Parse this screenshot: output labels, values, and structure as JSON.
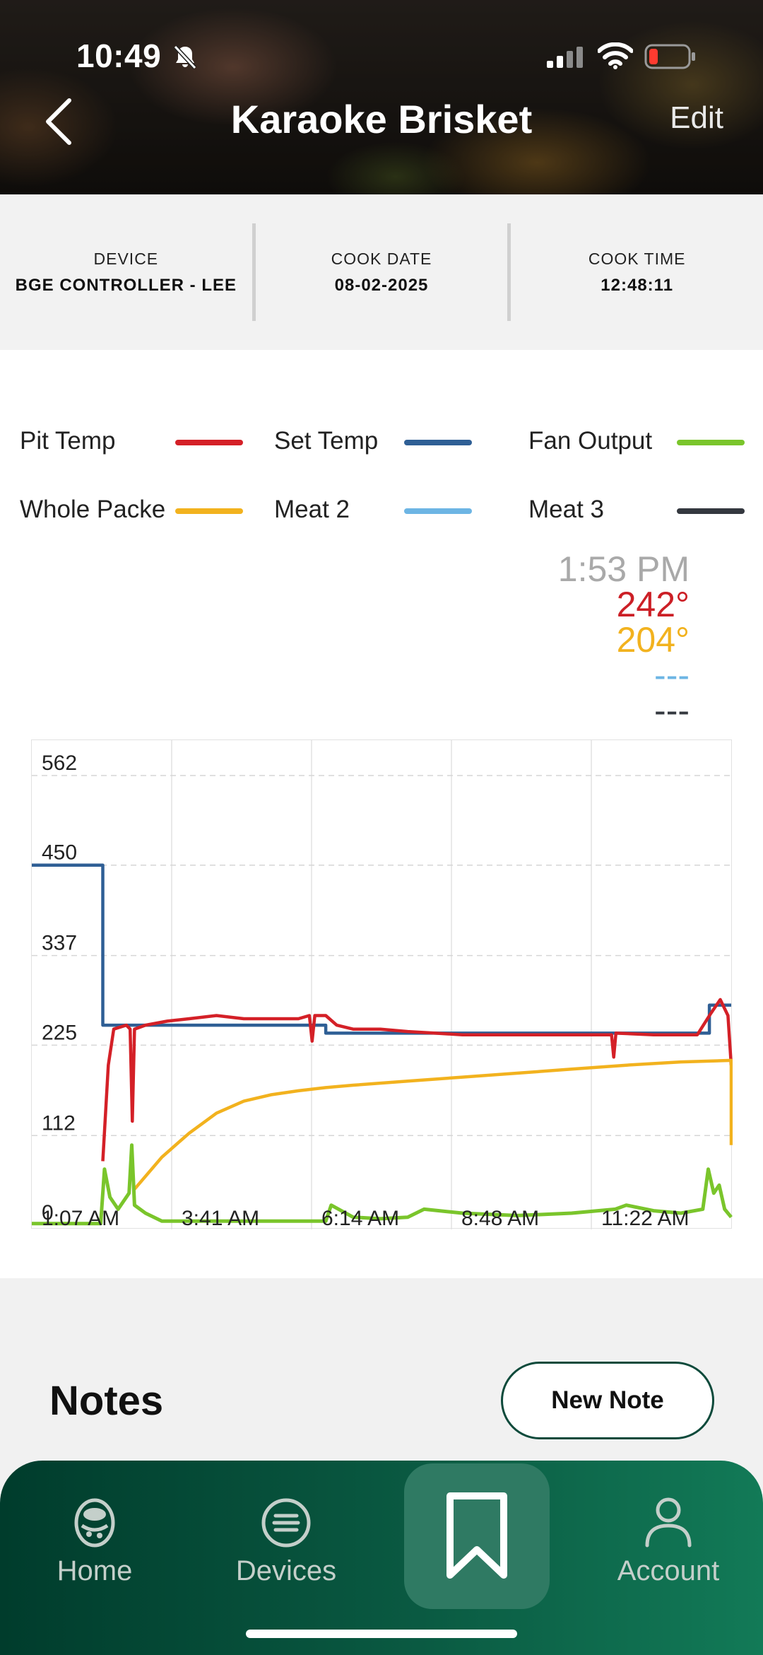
{
  "status_bar": {
    "time": "10:49"
  },
  "header": {
    "title": "Karaoke Brisket",
    "edit_label": "Edit"
  },
  "info": [
    {
      "label": "DEVICE",
      "value": "BGE CONTROLLER - LEE"
    },
    {
      "label": "COOK DATE",
      "value": "08-02-2025"
    },
    {
      "label": "COOK TIME",
      "value": "12:48:11"
    }
  ],
  "legend": [
    {
      "label": "Pit Temp",
      "color": "#d42027"
    },
    {
      "label": "Set Temp",
      "color": "#2f5f95"
    },
    {
      "label": "Fan Output",
      "color": "#7ac52b"
    },
    {
      "label": "Whole Packe",
      "color": "#f2b21e"
    },
    {
      "label": "Meat 2",
      "color": "#6db5e4"
    },
    {
      "label": "Meat 3",
      "color": "#34383f"
    }
  ],
  "readout": {
    "time": "1:53 PM",
    "pit": "242°",
    "meat1": "204°",
    "meat2": "---",
    "meat3": "---"
  },
  "chart_data": {
    "type": "line",
    "x_unit": "time",
    "xlabel": "",
    "ylabel": "",
    "x_ticks": [
      "1:07 AM",
      "3:41 AM",
      "6:14 AM",
      "8:48 AM",
      "11:22 AM"
    ],
    "y_ticks": [
      0,
      112,
      225,
      337,
      450,
      562
    ],
    "ylim": [
      0,
      562
    ],
    "x_hours": [
      1.12,
      13.92
    ],
    "grid": true,
    "series": [
      {
        "name": "Set Temp",
        "color": "#2f5f95",
        "points": [
          [
            1.12,
            450
          ],
          [
            2.42,
            450
          ],
          [
            2.42,
            250
          ],
          [
            6.5,
            250
          ],
          [
            6.5,
            240
          ],
          [
            13.52,
            240
          ],
          [
            13.52,
            275
          ],
          [
            13.92,
            275
          ]
        ]
      },
      {
        "name": "Pit Temp",
        "color": "#d42027",
        "points": [
          [
            2.42,
            80
          ],
          [
            2.52,
            200
          ],
          [
            2.62,
            245
          ],
          [
            2.85,
            250
          ],
          [
            2.92,
            245
          ],
          [
            2.96,
            130
          ],
          [
            3.0,
            245
          ],
          [
            3.2,
            250
          ],
          [
            3.6,
            255
          ],
          [
            4.0,
            258
          ],
          [
            4.5,
            262
          ],
          [
            5.0,
            258
          ],
          [
            5.5,
            258
          ],
          [
            6.0,
            258
          ],
          [
            6.2,
            262
          ],
          [
            6.25,
            230
          ],
          [
            6.3,
            262
          ],
          [
            6.5,
            262
          ],
          [
            6.7,
            250
          ],
          [
            7.0,
            245
          ],
          [
            7.5,
            245
          ],
          [
            8.0,
            242
          ],
          [
            8.5,
            240
          ],
          [
            9.0,
            238
          ],
          [
            10.0,
            238
          ],
          [
            11.0,
            238
          ],
          [
            11.73,
            238
          ],
          [
            11.77,
            210
          ],
          [
            11.81,
            240
          ],
          [
            12.5,
            238
          ],
          [
            13.3,
            238
          ],
          [
            13.55,
            265
          ],
          [
            13.72,
            282
          ],
          [
            13.86,
            262
          ],
          [
            13.92,
            200
          ]
        ]
      },
      {
        "name": "Whole Packe",
        "color": "#f2b21e",
        "points": [
          [
            3.0,
            45
          ],
          [
            3.5,
            85
          ],
          [
            4.0,
            115
          ],
          [
            4.5,
            140
          ],
          [
            5.0,
            155
          ],
          [
            5.5,
            163
          ],
          [
            6.0,
            168
          ],
          [
            6.5,
            172
          ],
          [
            7.0,
            175
          ],
          [
            8.0,
            180
          ],
          [
            9.0,
            185
          ],
          [
            10.0,
            190
          ],
          [
            11.0,
            195
          ],
          [
            12.0,
            200
          ],
          [
            13.0,
            204
          ],
          [
            13.92,
            206
          ],
          [
            13.92,
            100
          ]
        ]
      },
      {
        "name": "Fan Output",
        "color": "#7ac52b",
        "points": [
          [
            1.12,
            2
          ],
          [
            2.38,
            2
          ],
          [
            2.45,
            70
          ],
          [
            2.55,
            35
          ],
          [
            2.7,
            20
          ],
          [
            2.9,
            40
          ],
          [
            2.95,
            100
          ],
          [
            3.0,
            25
          ],
          [
            3.2,
            15
          ],
          [
            3.5,
            5
          ],
          [
            6.5,
            5
          ],
          [
            6.6,
            25
          ],
          [
            7.0,
            10
          ],
          [
            7.5,
            8
          ],
          [
            8.0,
            10
          ],
          [
            8.3,
            20
          ],
          [
            9.0,
            15
          ],
          [
            10.0,
            12
          ],
          [
            11.0,
            15
          ],
          [
            11.8,
            20
          ],
          [
            12.0,
            25
          ],
          [
            12.5,
            18
          ],
          [
            13.0,
            15
          ],
          [
            13.4,
            20
          ],
          [
            13.5,
            70
          ],
          [
            13.6,
            40
          ],
          [
            13.7,
            50
          ],
          [
            13.8,
            20
          ],
          [
            13.92,
            10
          ]
        ]
      }
    ]
  },
  "notes": {
    "title": "Notes",
    "new_note_label": "New Note"
  },
  "nav": {
    "home": "Home",
    "devices": "Devices",
    "account": "Account"
  }
}
